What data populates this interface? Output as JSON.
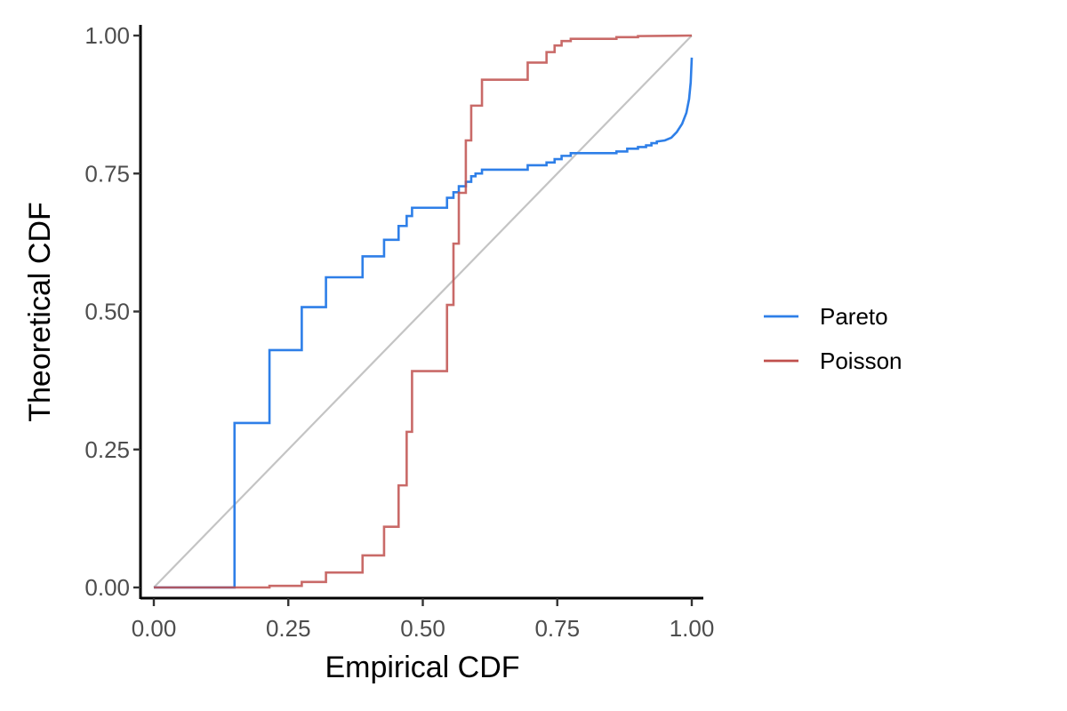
{
  "chart_data": {
    "type": "line",
    "title": "",
    "xlabel": "Empirical CDF",
    "ylabel": "Theoretical CDF",
    "xlim": [
      0,
      1
    ],
    "ylim": [
      0,
      1
    ],
    "x_ticks": [
      "0.00",
      "0.25",
      "0.50",
      "0.75",
      "1.00"
    ],
    "y_ticks": [
      "0.00",
      "0.25",
      "0.50",
      "0.75",
      "1.00"
    ],
    "grid": false,
    "legend_position": "right",
    "reference_line": {
      "name": "identity",
      "color": "#c4c4c4",
      "points": [
        [
          0,
          0
        ],
        [
          1,
          1
        ]
      ]
    },
    "series": [
      {
        "name": "Pareto",
        "color": "#2e7fe8",
        "step": true,
        "points": [
          [
            0,
            0
          ],
          [
            0.15,
            0
          ],
          [
            0.15,
            0.298
          ],
          [
            0.215,
            0.298
          ],
          [
            0.215,
            0.43
          ],
          [
            0.275,
            0.43
          ],
          [
            0.275,
            0.508
          ],
          [
            0.32,
            0.508
          ],
          [
            0.32,
            0.562
          ],
          [
            0.388,
            0.562
          ],
          [
            0.388,
            0.6
          ],
          [
            0.428,
            0.6
          ],
          [
            0.428,
            0.63
          ],
          [
            0.455,
            0.63
          ],
          [
            0.455,
            0.655
          ],
          [
            0.47,
            0.655
          ],
          [
            0.47,
            0.673
          ],
          [
            0.48,
            0.673
          ],
          [
            0.48,
            0.688
          ],
          [
            0.545,
            0.688
          ],
          [
            0.545,
            0.706
          ],
          [
            0.557,
            0.706
          ],
          [
            0.557,
            0.716
          ],
          [
            0.567,
            0.716
          ],
          [
            0.567,
            0.727
          ],
          [
            0.58,
            0.727
          ],
          [
            0.58,
            0.735
          ],
          [
            0.59,
            0.735
          ],
          [
            0.59,
            0.745
          ],
          [
            0.598,
            0.745
          ],
          [
            0.598,
            0.75
          ],
          [
            0.61,
            0.75
          ],
          [
            0.61,
            0.757
          ],
          [
            0.695,
            0.757
          ],
          [
            0.695,
            0.765
          ],
          [
            0.73,
            0.765
          ],
          [
            0.73,
            0.77
          ],
          [
            0.745,
            0.77
          ],
          [
            0.745,
            0.776
          ],
          [
            0.758,
            0.776
          ],
          [
            0.758,
            0.782
          ],
          [
            0.775,
            0.782
          ],
          [
            0.775,
            0.787
          ],
          [
            0.86,
            0.787
          ],
          [
            0.86,
            0.79
          ],
          [
            0.88,
            0.79
          ],
          [
            0.88,
            0.795
          ],
          [
            0.9,
            0.795
          ],
          [
            0.9,
            0.798
          ],
          [
            0.915,
            0.798
          ],
          [
            0.915,
            0.801
          ],
          [
            0.925,
            0.801
          ],
          [
            0.925,
            0.805
          ],
          [
            0.935,
            0.805
          ],
          [
            0.935,
            0.808
          ],
          [
            0.95,
            0.81
          ],
          [
            0.962,
            0.815
          ],
          [
            0.972,
            0.825
          ],
          [
            0.982,
            0.84
          ],
          [
            0.99,
            0.86
          ],
          [
            0.995,
            0.885
          ],
          [
            0.998,
            0.915
          ],
          [
            1.0,
            0.96
          ]
        ]
      },
      {
        "name": "Poisson",
        "color": "#c0504d",
        "step": true,
        "points": [
          [
            0,
            0
          ],
          [
            0.215,
            0
          ],
          [
            0.215,
            0.003
          ],
          [
            0.275,
            0.003
          ],
          [
            0.275,
            0.01
          ],
          [
            0.32,
            0.01
          ],
          [
            0.32,
            0.027
          ],
          [
            0.388,
            0.027
          ],
          [
            0.388,
            0.058
          ],
          [
            0.428,
            0.058
          ],
          [
            0.428,
            0.11
          ],
          [
            0.455,
            0.11
          ],
          [
            0.455,
            0.185
          ],
          [
            0.47,
            0.185
          ],
          [
            0.47,
            0.282
          ],
          [
            0.48,
            0.282
          ],
          [
            0.48,
            0.392
          ],
          [
            0.545,
            0.392
          ],
          [
            0.545,
            0.512
          ],
          [
            0.557,
            0.512
          ],
          [
            0.557,
            0.623
          ],
          [
            0.567,
            0.623
          ],
          [
            0.567,
            0.63
          ],
          [
            0.567,
            0.715
          ],
          [
            0.58,
            0.715
          ],
          [
            0.58,
            0.81
          ],
          [
            0.59,
            0.81
          ],
          [
            0.59,
            0.873
          ],
          [
            0.61,
            0.873
          ],
          [
            0.61,
            0.92
          ],
          [
            0.695,
            0.92
          ],
          [
            0.695,
            0.951
          ],
          [
            0.73,
            0.951
          ],
          [
            0.73,
            0.97
          ],
          [
            0.745,
            0.97
          ],
          [
            0.745,
            0.982
          ],
          [
            0.758,
            0.982
          ],
          [
            0.758,
            0.99
          ],
          [
            0.775,
            0.99
          ],
          [
            0.775,
            0.994
          ],
          [
            0.86,
            0.994
          ],
          [
            0.86,
            0.997
          ],
          [
            0.9,
            0.997
          ],
          [
            0.9,
            0.999
          ],
          [
            1.0,
            1.0
          ]
        ]
      }
    ]
  }
}
